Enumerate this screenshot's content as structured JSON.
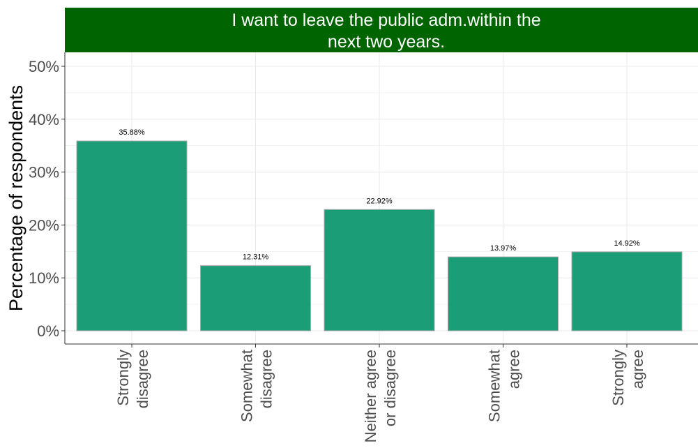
{
  "colors": {
    "title_band": "#006400",
    "bar_fill": "#1b9e77",
    "bar_stroke": "#a9a9a9",
    "grid": "#ebebeb"
  },
  "chart_data": {
    "type": "bar",
    "title": "I want to leave the public adm.within the next two years.",
    "title_lines": [
      "I want to leave the public adm.within the",
      "next two years."
    ],
    "xlabel": "",
    "ylabel": "Percentage of respondents",
    "categories": [
      "Strongly disagree",
      "Somewhat disagree",
      "Neither agree or disagree",
      "Somewhat agree",
      "Strongly agree"
    ],
    "category_lines": [
      [
        "Strongly",
        "disagree"
      ],
      [
        "Somewhat",
        "disagree"
      ],
      [
        "Neither agree",
        "or disagree"
      ],
      [
        "Somewhat",
        "agree"
      ],
      [
        "Strongly",
        "agree"
      ]
    ],
    "values": [
      35.88,
      12.31,
      22.92,
      13.97,
      14.92
    ],
    "data_labels": [
      "35.88%",
      "12.31%",
      "22.92%",
      "13.97%",
      "14.92%"
    ],
    "ylim": [
      0,
      52.5
    ],
    "yticks": [
      0,
      10,
      20,
      30,
      40,
      50
    ],
    "ytick_labels": [
      "0%",
      "10%",
      "20%",
      "30%",
      "40%",
      "50%"
    ],
    "grid": true,
    "legend": "none"
  }
}
